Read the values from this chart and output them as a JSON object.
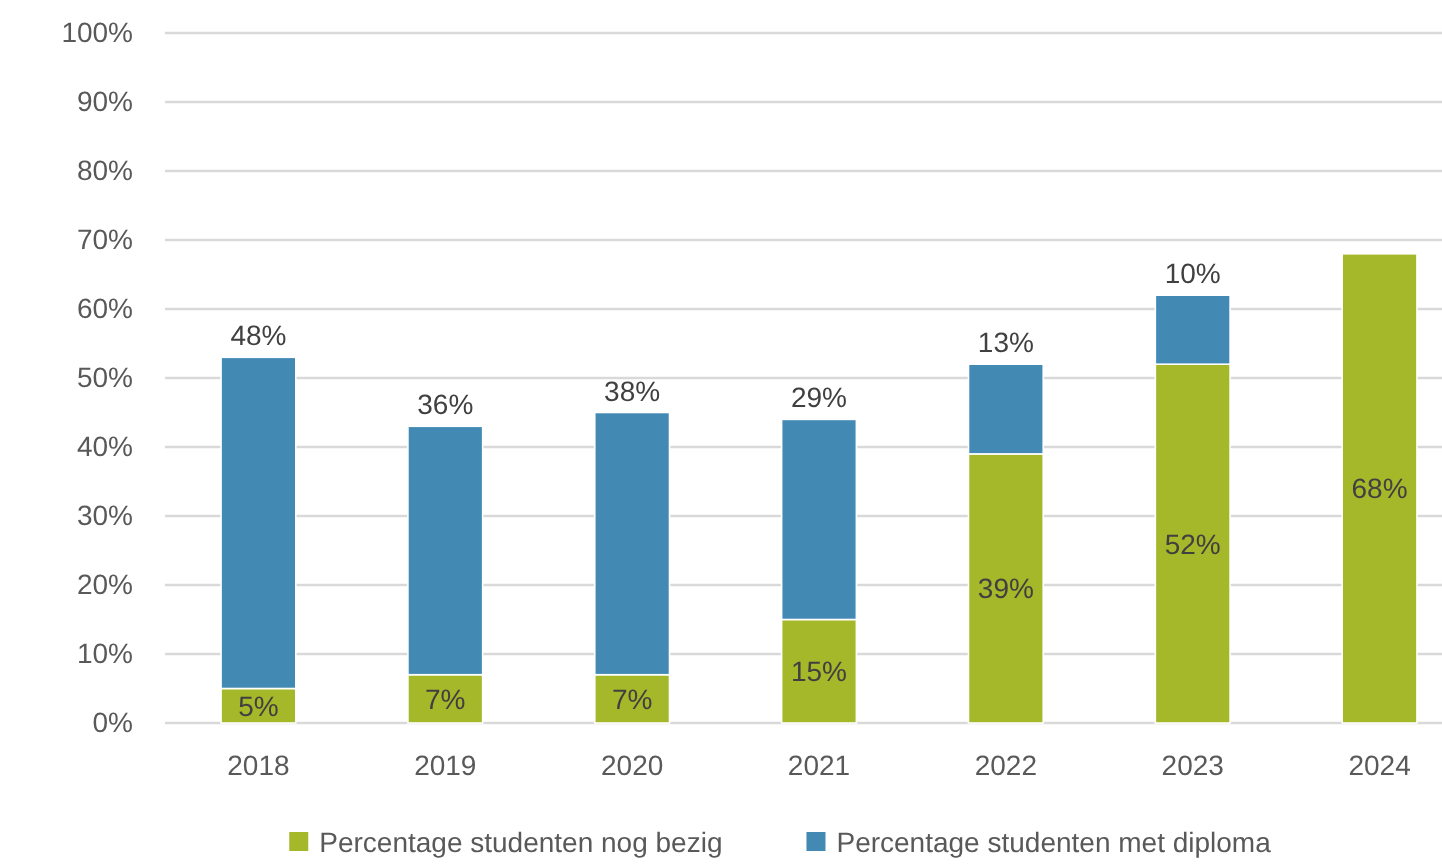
{
  "chart_data": {
    "type": "bar",
    "stacked": true,
    "categories": [
      "2018",
      "2019",
      "2020",
      "2021",
      "2022",
      "2023",
      "2024"
    ],
    "series": [
      {
        "name": "Percentage studenten nog bezig",
        "color": "#a5b82a",
        "values": [
          5,
          7,
          7,
          15,
          39,
          52,
          68
        ],
        "value_labels": [
          "5%",
          "7%",
          "7%",
          "15%",
          "39%",
          "52%",
          "68%"
        ]
      },
      {
        "name": "Percentage studenten met diploma",
        "color": "#4289b4",
        "values": [
          48,
          36,
          38,
          29,
          13,
          10,
          null
        ],
        "value_labels": [
          "48%",
          "36%",
          "38%",
          "29%",
          "13%",
          "10%",
          null
        ]
      }
    ],
    "ylim": [
      0,
      100
    ],
    "yticks": [
      {
        "value": 0,
        "label": "0%"
      },
      {
        "value": 10,
        "label": "10%"
      },
      {
        "value": 20,
        "label": "20%"
      },
      {
        "value": 30,
        "label": "30%"
      },
      {
        "value": 40,
        "label": "40%"
      },
      {
        "value": 50,
        "label": "50%"
      },
      {
        "value": 60,
        "label": "60%"
      },
      {
        "value": 70,
        "label": "70%"
      },
      {
        "value": 80,
        "label": "80%"
      },
      {
        "value": 90,
        "label": "90%"
      },
      {
        "value": 100,
        "label": "100%"
      }
    ],
    "grid": "y",
    "legend": "bottom"
  }
}
